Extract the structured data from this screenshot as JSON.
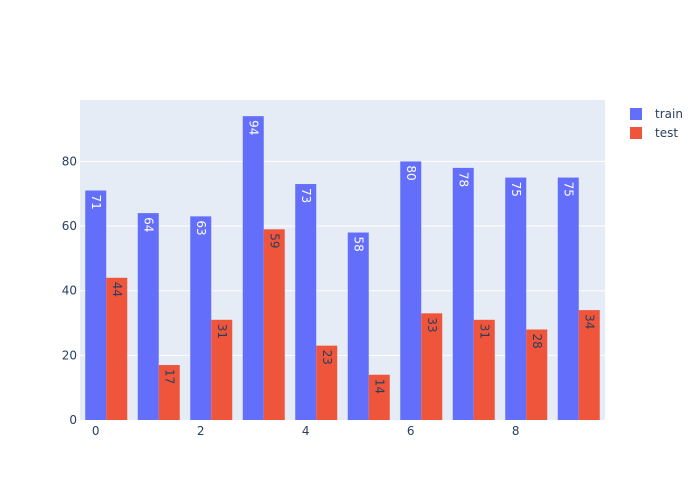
{
  "chart_data": {
    "type": "bar",
    "categories": [
      0,
      1,
      2,
      3,
      4,
      5,
      6,
      7,
      8,
      9
    ],
    "series": [
      {
        "name": "train",
        "values": [
          71,
          64,
          63,
          94,
          73,
          58,
          80,
          78,
          75,
          75
        ],
        "color": "#636efa",
        "label_color": "#ffffff"
      },
      {
        "name": "test",
        "values": [
          44,
          17,
          31,
          59,
          23,
          14,
          33,
          31,
          28,
          34
        ],
        "color": "#ef553b",
        "label_color": "#2a3f5f"
      }
    ],
    "xticks": [
      0,
      2,
      4,
      6,
      8
    ],
    "yticks": [
      0,
      20,
      40,
      60,
      80
    ],
    "ylim": [
      0,
      99
    ],
    "grid": true,
    "legend_position": "top-right",
    "plot_background": "#e5ecf6",
    "data_labels": "inside-end, rotated"
  }
}
